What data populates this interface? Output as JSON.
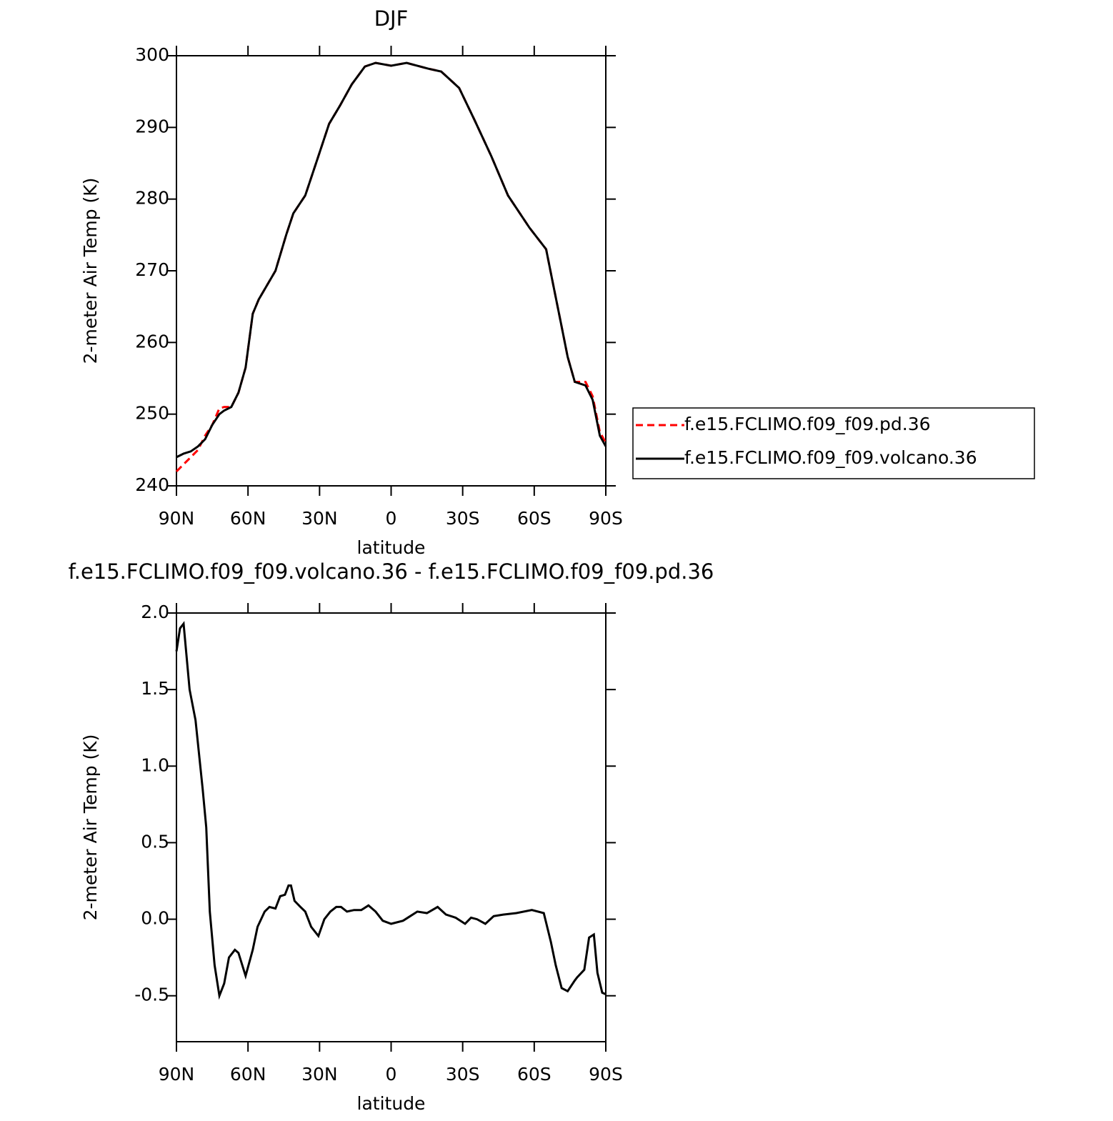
{
  "chart_data": [
    {
      "type": "line",
      "title": "DJF",
      "xlabel": "latitude",
      "ylabel": "2-meter Air Temp (K)",
      "x": [
        90,
        87,
        84,
        81,
        78,
        75,
        72,
        70,
        67,
        64,
        61,
        58,
        55.5,
        48.5,
        44,
        41,
        36,
        30.5,
        26,
        21.5,
        16.5,
        11,
        6.5,
        0,
        -6.5,
        -15.5,
        -21,
        -28.5,
        -35,
        -42,
        -49,
        -58,
        -65,
        -68,
        -71,
        -74,
        -77,
        -81.5,
        -84.5,
        -87.5,
        -90
      ],
      "series": [
        {
          "name": "f.e15.FCLIMO.f09_f09.pd.36",
          "color": "#ff0000",
          "dash": true,
          "values": [
            242,
            243,
            244,
            245,
            247,
            248.5,
            250.8,
            251,
            251,
            253,
            256.5,
            264,
            266,
            270,
            275,
            278,
            280.5,
            286,
            290.5,
            293,
            296,
            298.5,
            299,
            298.6,
            299,
            298.2,
            297.8,
            295.5,
            291,
            286,
            280.5,
            276,
            273,
            268,
            263,
            258,
            254.5,
            254.5,
            252.5,
            247.5,
            246
          ]
        },
        {
          "name": "f.e15.FCLIMO.f09_f09.volcano.36",
          "color": "#000000",
          "dash": false,
          "values": [
            244,
            244.5,
            244.8,
            245.5,
            246.5,
            248.5,
            250,
            250.5,
            251,
            253,
            256.5,
            264,
            266,
            270,
            275,
            278,
            280.5,
            286,
            290.5,
            293,
            296,
            298.5,
            299,
            298.6,
            299,
            298.2,
            297.8,
            295.5,
            291,
            286,
            280.5,
            276,
            273,
            268,
            263,
            258,
            254.5,
            254,
            252,
            247,
            245.5
          ]
        }
      ],
      "xlim": [
        90,
        -90
      ],
      "xticks": [
        {
          "value": 90,
          "label": "90N"
        },
        {
          "value": 60,
          "label": "60N"
        },
        {
          "value": 30,
          "label": "30N"
        },
        0,
        {
          "value": -30,
          "label": "30S"
        },
        {
          "value": -60,
          "label": "60S"
        },
        {
          "value": -90,
          "label": "90S"
        }
      ],
      "ylim": [
        240,
        300
      ],
      "yticks": [
        240,
        250,
        260,
        270,
        280,
        290,
        300
      ],
      "legend": "outside right"
    },
    {
      "type": "line",
      "title": "f.e15.FCLIMO.f09_f09.volcano.36 - f.e15.FCLIMO.f09_f09.pd.36",
      "xlabel": "latitude",
      "ylabel": "2-meter Air Temp (K)",
      "x": [
        90,
        88.5,
        87,
        84.5,
        82,
        79,
        77.5,
        76,
        74,
        72,
        70,
        68,
        65.5,
        64,
        61,
        58,
        56,
        53,
        51,
        48.5,
        46.5,
        44.5,
        43,
        42,
        40.5,
        38,
        36,
        33.5,
        30.5,
        28,
        25.5,
        23,
        21,
        18.5,
        15.5,
        12.5,
        9.5,
        6.5,
        3.5,
        0,
        -5,
        -8,
        -11,
        -15,
        -19.5,
        -23,
        -27,
        -31,
        -33.5,
        -36,
        -39.5,
        -43,
        -47,
        -52.5,
        -59,
        -64,
        -67,
        -69,
        -71.5,
        -74,
        -77,
        -78,
        -81,
        -83,
        -85,
        -86.5,
        -88.5,
        -90
      ],
      "values": [
        1.75,
        1.9,
        1.93,
        1.5,
        1.3,
        0.85,
        0.6,
        0.05,
        -0.3,
        -0.5,
        -0.42,
        -0.25,
        -0.2,
        -0.22,
        -0.37,
        -0.2,
        -0.05,
        0.05,
        0.08,
        0.07,
        0.15,
        0.16,
        0.22,
        0.22,
        0.12,
        0.08,
        0.05,
        -0.05,
        -0.11,
        0.0,
        0.05,
        0.08,
        0.08,
        0.05,
        0.06,
        0.06,
        0.09,
        0.05,
        -0.01,
        -0.03,
        -0.01,
        0.02,
        0.05,
        0.04,
        0.08,
        0.03,
        0.01,
        -0.03,
        0.01,
        0.0,
        -0.03,
        0.02,
        0.03,
        0.04,
        0.06,
        0.04,
        -0.15,
        -0.3,
        -0.45,
        -0.47,
        -0.4,
        -0.38,
        -0.33,
        -0.12,
        -0.1,
        -0.35,
        -0.48,
        -0.49
      ],
      "color": "#000000",
      "xlim": [
        90,
        -90
      ],
      "xticks": [
        {
          "value": 90,
          "label": "90N"
        },
        {
          "value": 60,
          "label": "60N"
        },
        {
          "value": 30,
          "label": "30N"
        },
        0,
        {
          "value": -30,
          "label": "30S"
        },
        {
          "value": -60,
          "label": "60S"
        },
        {
          "value": -90,
          "label": "90S"
        }
      ],
      "ylim": [
        -0.8,
        2.0
      ],
      "yticks": [
        -0.5,
        {
          "value": 0,
          "label": "0.0"
        },
        0.5,
        {
          "value": 1,
          "label": "1.0"
        },
        1.5,
        {
          "value": 2,
          "label": "2.0"
        }
      ]
    }
  ]
}
